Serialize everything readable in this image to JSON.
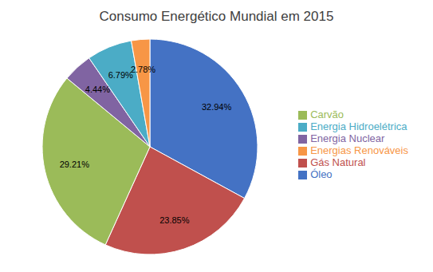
{
  "chart_data": {
    "type": "pie",
    "title": "Consumo Energético Mundial em 2015",
    "categories": [
      "Óleo",
      "Gás Natural",
      "Carvão",
      "Energia Nuclear",
      "Energia Hidroelétrica",
      "Energias Renováveis"
    ],
    "values": [
      32.94,
      23.85,
      29.21,
      4.44,
      6.79,
      2.78
    ],
    "value_labels": [
      "32.94%",
      "23.85%",
      "29.21%",
      "4.44%",
      "6.79%",
      "2.78%"
    ],
    "colors": [
      "#4472C4",
      "#C0504D",
      "#9BBB59",
      "#8064A2",
      "#4BACC6",
      "#F79646"
    ],
    "data_labels": true,
    "legend": "right"
  }
}
